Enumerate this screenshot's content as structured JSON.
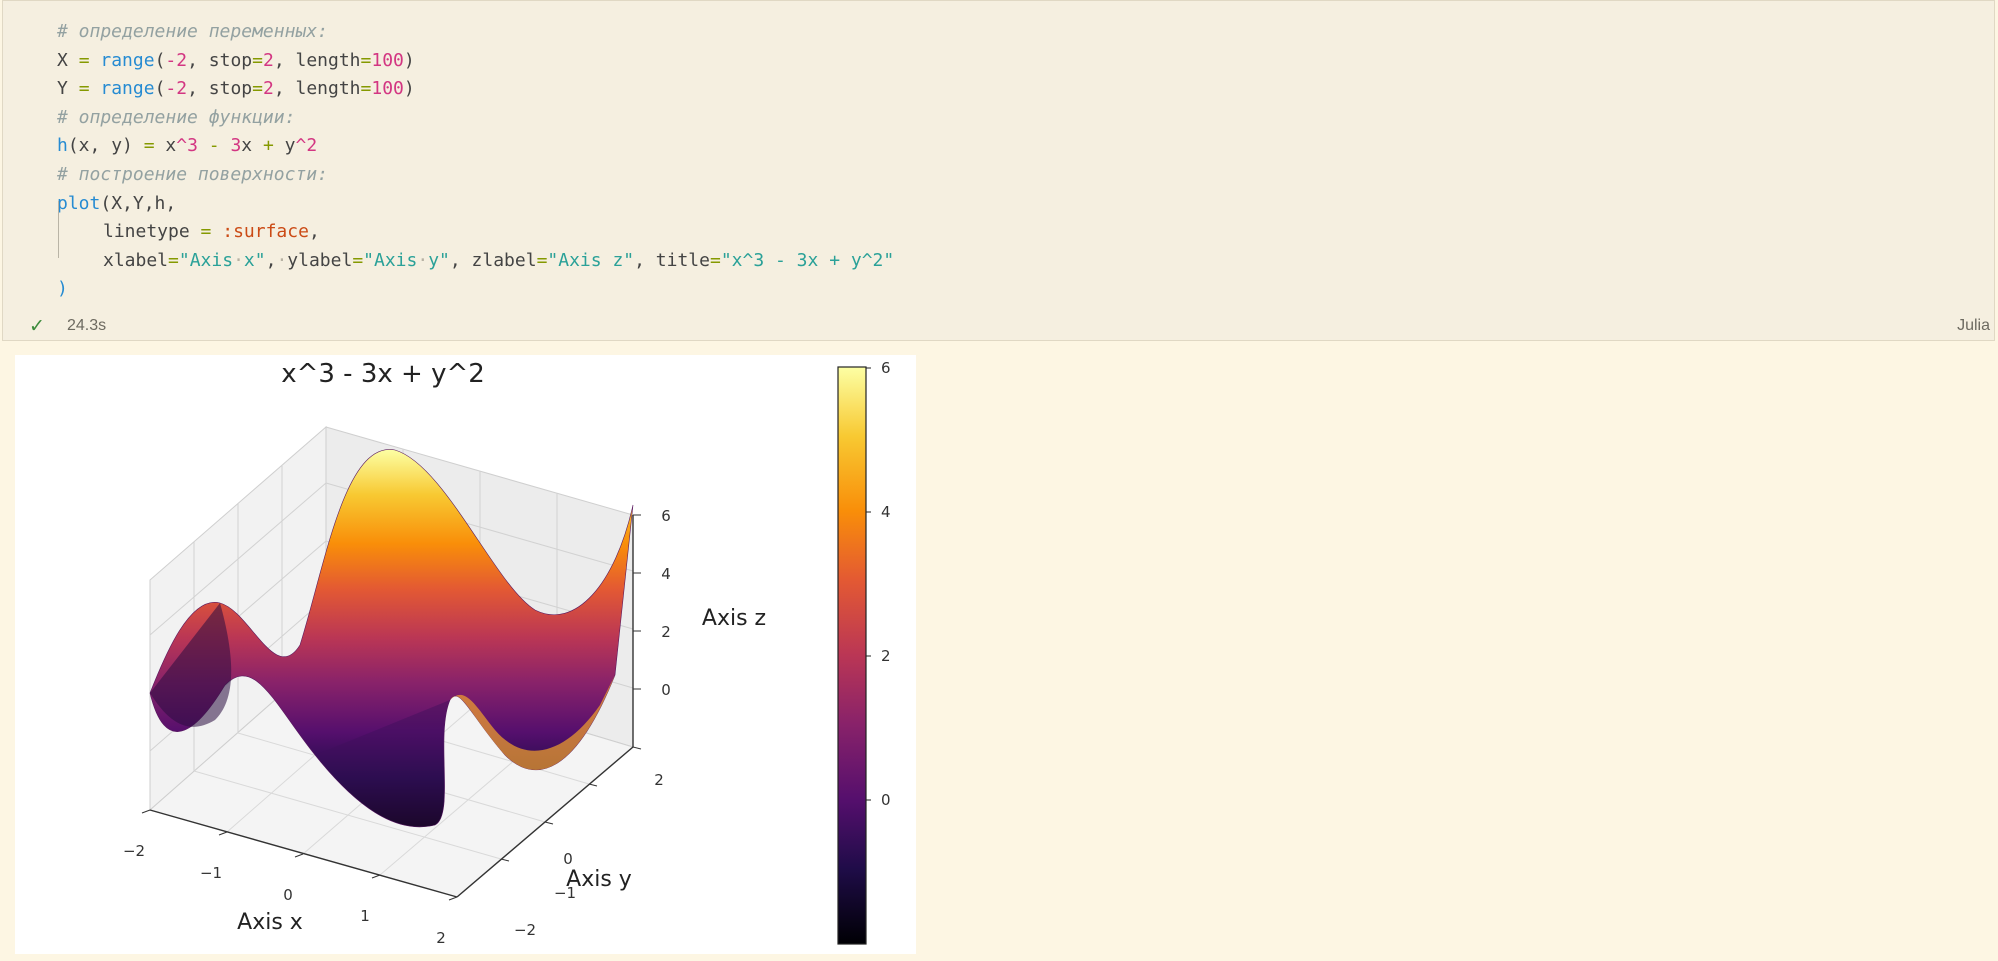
{
  "code_lines": [
    "# определение переменных:",
    "X = range(-2, stop=2, length=100)",
    "Y = range(-2, stop=2, length=100)",
    "# определение функции:",
    "h(x, y) = x^3 - 3x + y^2",
    "# построение поверхности:",
    "plot(X,Y,h,",
    "linetype = :surface,",
    "xlabel=\"Axis x\", ylabel=\"Axis y\", zlabel=\"Axis z\", title=\"x^3 - 3x + y^2\"",
    ")"
  ],
  "status": {
    "check_icon": "checkmark-icon",
    "duration": "24.3s",
    "language": "Julia"
  },
  "chart_data": {
    "type": "surface",
    "title": "x^3 - 3x + y^2",
    "xlabel": "Axis x",
    "ylabel": "Axis y",
    "zlabel": "Axis z",
    "x_ticks": [
      "−2",
      "−1",
      "0",
      "1",
      "2"
    ],
    "y_ticks": [
      "−2",
      "−1",
      "0",
      "2"
    ],
    "z_ticks": [
      "0",
      "2",
      "4",
      "6"
    ],
    "colorbar_ticks": [
      "0",
      "2",
      "4",
      "6"
    ],
    "colormap": "inferno",
    "xlim": [
      -2,
      2
    ],
    "ylim": [
      -2,
      2
    ],
    "zlim": [
      -2,
      6
    ],
    "function": "h(x, y) = x^3 - 3x + y^2",
    "grid": true
  }
}
